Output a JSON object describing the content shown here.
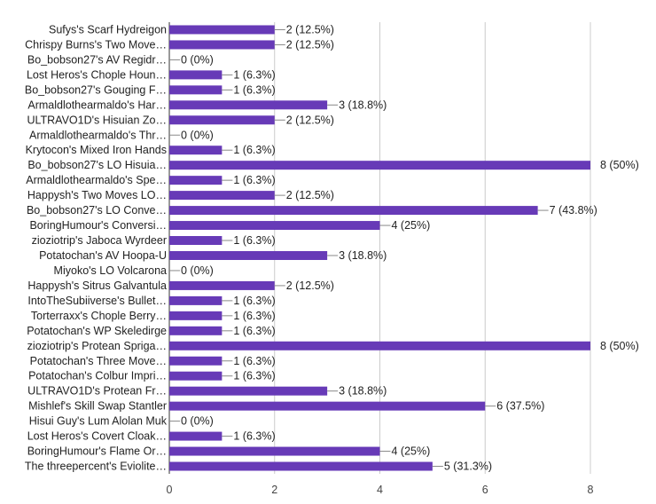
{
  "chart_data": {
    "type": "bar",
    "orientation": "horizontal",
    "bar_color": "#673ab7",
    "grid": true,
    "xlim": [
      0,
      8
    ],
    "x_ticks": [
      0,
      2,
      4,
      6,
      8
    ],
    "categories": [
      "Sufys's Scarf Hydreigon",
      "Chrispy Burns's Two Move…",
      "Bo_bobson27's AV Regidr…",
      "Lost Heros's Chople Houn…",
      "Bo_bobson27's Gouging F…",
      "Armaldlothearmaldo's Har…",
      "ULTRAVO1D's Hisuian Zo…",
      "Armaldlothearmaldo's Thr…",
      "Krytocon's Mixed Iron Hands",
      "Bo_bobson27's LO Hisuia…",
      "Armaldlothearmaldo's Spe…",
      "Happysh's Two Moves LO…",
      "Bo_bobson27's LO Conve…",
      "BoringHumour's Conversi…",
      "zioziotrip's Jaboca Wyrdeer",
      "Potatochan's AV Hoopa-U",
      "Miyoko's LO Volcarona",
      "Happysh's Sitrus Galvantula",
      "IntoTheSubiiverse's Bullet…",
      "Torterraxx's Chople Berry…",
      "Potatochan's WP Skeledirge",
      "zioziotrip's Protean Spriga…",
      "Potatochan's Three Move…",
      "Potatochan's Colbur Impri…",
      "ULTRAVO1D's Protean Fr…",
      "Mishlef's Skill Swap Stantler",
      "Hisui Guy's Lum Alolan Muk",
      "Lost Heros's Covert Cloak…",
      "BoringHumour's Flame Or…",
      "The threepercent's Eviolite…"
    ],
    "values": [
      2,
      2,
      0,
      1,
      1,
      3,
      2,
      0,
      1,
      8,
      1,
      2,
      7,
      4,
      1,
      3,
      0,
      2,
      1,
      1,
      1,
      8,
      1,
      1,
      3,
      6,
      0,
      1,
      4,
      5
    ],
    "data_labels": [
      "2 (12.5%)",
      "2 (12.5%)",
      "0 (0%)",
      "1 (6.3%)",
      "1 (6.3%)",
      "3 (18.8%)",
      "2 (12.5%)",
      "0 (0%)",
      "1 (6.3%)",
      "8 (50%)",
      "1 (6.3%)",
      "2 (12.5%)",
      "7 (43.8%)",
      "4 (25%)",
      "1 (6.3%)",
      "3 (18.8%)",
      "0 (0%)",
      "2 (12.5%)",
      "1 (6.3%)",
      "1 (6.3%)",
      "1 (6.3%)",
      "8 (50%)",
      "1 (6.3%)",
      "1 (6.3%)",
      "3 (18.8%)",
      "6 (37.5%)",
      "0 (0%)",
      "1 (6.3%)",
      "4 (25%)",
      "5 (31.3%)"
    ]
  }
}
